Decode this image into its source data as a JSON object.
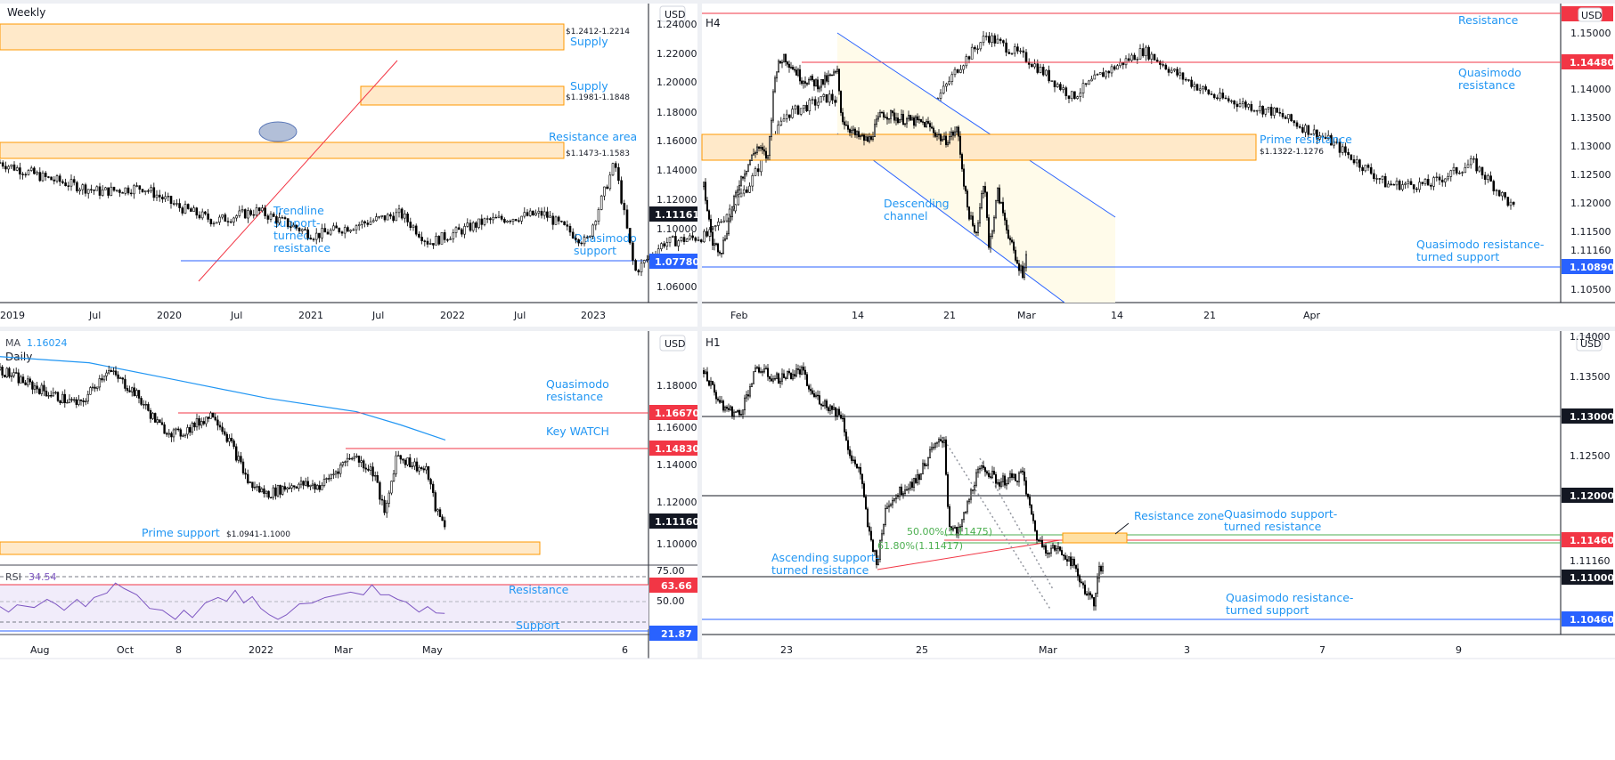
{
  "chart_data": [
    {
      "type": "candlestick",
      "title": "Weekly",
      "currency": "USD",
      "ylim": [
        1.05,
        1.245
      ],
      "y_ticks": [
        "1.24000",
        "1.22000",
        "1.20000",
        "1.18000",
        "1.16000",
        "1.14000",
        "1.12000",
        "1.10000",
        "1.06000"
      ],
      "x_ticks": [
        "2019",
        "Jul",
        "2020",
        "Jul",
        "2021",
        "Jul",
        "2022",
        "Jul",
        "2023"
      ],
      "path": [
        [
          0,
          1.145
        ],
        [
          15,
          1.135
        ],
        [
          35,
          1.125
        ],
        [
          50,
          1.128
        ],
        [
          62,
          1.115
        ],
        [
          75,
          1.105
        ],
        [
          90,
          1.112
        ],
        [
          110,
          1.095
        ],
        [
          140,
          1.11
        ],
        [
          150,
          1.09
        ],
        [
          170,
          1.105
        ],
        [
          190,
          1.11
        ],
        [
          205,
          1.09
        ],
        [
          215,
          1.145
        ],
        [
          222,
          1.07
        ],
        [
          232,
          1.09
        ],
        [
          248,
          1.095
        ],
        [
          262,
          1.13
        ],
        [
          275,
          1.178
        ],
        [
          290,
          1.19
        ],
        [
          305,
          1.175
        ],
        [
          320,
          1.165
        ],
        [
          335,
          1.21
        ],
        [
          345,
          1.232
        ],
        [
          360,
          1.215
        ],
        [
          375,
          1.19
        ],
        [
          385,
          1.205
        ],
        [
          400,
          1.222
        ],
        [
          412,
          1.205
        ],
        [
          425,
          1.19
        ],
        [
          445,
          1.18
        ],
        [
          465,
          1.16
        ],
        [
          485,
          1.13
        ],
        [
          500,
          1.13
        ],
        [
          515,
          1.145
        ],
        [
          522,
          1.13
        ],
        [
          530,
          1.112
        ]
      ],
      "last_price": "1.11161",
      "zones": [
        {
          "label": "Supply",
          "range": "$1.2412-1.2214"
        },
        {
          "label": "Supply",
          "range": "$1.1981-1.1848"
        },
        {
          "label": "Resistance area",
          "range": "$1.1473-1.1583"
        }
      ],
      "levels": [
        {
          "label": "Quasimodo support",
          "price": "1.07780",
          "color": "#2962ff"
        }
      ],
      "trendline_label": "Trendline support-turned resistance"
    },
    {
      "type": "candlestick",
      "title": "H4",
      "currency": "USD",
      "ylim": [
        1.102,
        1.153
      ],
      "y_ticks": [
        "1.15000",
        "1.14000",
        "1.13500",
        "1.13000",
        "1.12500",
        "1.12000",
        "1.11500",
        "1.10500"
      ],
      "x_ticks": [
        "Feb",
        "14",
        "21",
        "Mar",
        "14",
        "21",
        "Apr"
      ],
      "path": [
        [
          0,
          1.123
        ],
        [
          10,
          1.113
        ],
        [
          20,
          1.112
        ],
        [
          40,
          1.124
        ],
        [
          60,
          1.13
        ],
        [
          72,
          1.128
        ],
        [
          80,
          1.143
        ],
        [
          90,
          1.146
        ],
        [
          110,
          1.142
        ],
        [
          130,
          1.141
        ],
        [
          150,
          1.143
        ],
        [
          155,
          1.135
        ],
        [
          170,
          1.132
        ],
        [
          185,
          1.131
        ],
        [
          200,
          1.136
        ],
        [
          220,
          1.135
        ],
        [
          250,
          1.134
        ],
        [
          270,
          1.131
        ],
        [
          285,
          1.133
        ],
        [
          295,
          1.12
        ],
        [
          305,
          1.114
        ],
        [
          315,
          1.125
        ],
        [
          320,
          1.112
        ],
        [
          330,
          1.122
        ],
        [
          340,
          1.116
        ],
        [
          350,
          1.11
        ],
        [
          358,
          1.108
        ],
        [
          362,
          1.111
        ]
      ],
      "last_price": "1.11160",
      "levels": [
        {
          "label": "Resistance",
          "price": "1.15",
          "color": "#f23645"
        },
        {
          "label": "Quasimodo resistance",
          "price": "1.14480",
          "color": "#f23645"
        },
        {
          "label": "Quasimodo resistance-turned support",
          "price": "1.10890",
          "color": "#2962ff"
        }
      ],
      "zone": {
        "label": "Prime resistance",
        "range": "$1.1322-1.1276"
      },
      "channel_label": "Descending channel"
    },
    {
      "type": "candlestick",
      "title": "Daily",
      "currency": "USD",
      "ma": {
        "label": "MA",
        "value": "1.16024"
      },
      "y_ticks": [
        "1.18000",
        "1.16000",
        "1.14000",
        "1.12000",
        "1.10000"
      ],
      "x_ticks": [
        "Aug",
        "Oct",
        "8",
        "2022",
        "Mar",
        "May",
        "6"
      ],
      "path": [
        [
          0,
          1.188
        ],
        [
          30,
          1.181
        ],
        [
          60,
          1.175
        ],
        [
          90,
          1.17
        ],
        [
          120,
          1.188
        ],
        [
          150,
          1.177
        ],
        [
          180,
          1.159
        ],
        [
          200,
          1.155
        ],
        [
          240,
          1.166
        ],
        [
          260,
          1.15
        ],
        [
          280,
          1.13
        ],
        [
          300,
          1.125
        ],
        [
          330,
          1.13
        ],
        [
          360,
          1.129
        ],
        [
          395,
          1.145
        ],
        [
          420,
          1.136
        ],
        [
          432,
          1.114
        ],
        [
          445,
          1.145
        ],
        [
          460,
          1.141
        ],
        [
          480,
          1.136
        ],
        [
          490,
          1.116
        ],
        [
          500,
          1.109
        ]
      ],
      "ma_path": [
        [
          0,
          1.1945
        ],
        [
          100,
          1.1914
        ],
        [
          200,
          1.1825
        ],
        [
          300,
          1.1735
        ],
        [
          400,
          1.1667
        ],
        [
          450,
          1.16
        ],
        [
          500,
          1.1524
        ]
      ],
      "last_price": "1.11160",
      "levels": [
        {
          "label": "Quasimodo resistance",
          "price": "1.16670",
          "color": "#f23645"
        },
        {
          "label": "Key WATCH",
          "price": "1.14830",
          "color": "#f23645"
        }
      ],
      "zone": {
        "label": "Prime support",
        "range": "$1.0941-1.1000"
      },
      "rsi": {
        "label": "RSI",
        "value": "34.54",
        "ticks": [
          "75.00",
          "50.00"
        ],
        "resistance": {
          "label": "Resistance",
          "value": "63.66"
        },
        "support": {
          "label": "Support",
          "value": "21.87"
        },
        "values": [
          [
            0,
            42
          ],
          [
            10,
            36
          ],
          [
            20,
            44
          ],
          [
            40,
            41
          ],
          [
            55,
            50
          ],
          [
            65,
            45
          ],
          [
            75,
            38
          ],
          [
            90,
            50
          ],
          [
            100,
            42
          ],
          [
            110,
            52
          ],
          [
            125,
            57
          ],
          [
            135,
            68
          ],
          [
            145,
            62
          ],
          [
            160,
            55
          ],
          [
            175,
            40
          ],
          [
            190,
            38
          ],
          [
            205,
            28
          ],
          [
            215,
            38
          ],
          [
            225,
            30
          ],
          [
            240,
            46
          ],
          [
            255,
            52
          ],
          [
            265,
            48
          ],
          [
            275,
            60
          ],
          [
            285,
            46
          ],
          [
            295,
            53
          ],
          [
            305,
            40
          ],
          [
            315,
            33
          ],
          [
            325,
            28
          ],
          [
            335,
            33
          ],
          [
            350,
            45
          ],
          [
            365,
            46
          ],
          [
            380,
            52
          ],
          [
            395,
            55
          ],
          [
            410,
            58
          ],
          [
            425,
            55
          ],
          [
            435,
            66
          ],
          [
            445,
            55
          ],
          [
            455,
            55
          ],
          [
            465,
            50
          ],
          [
            475,
            47
          ],
          [
            490,
            36
          ],
          [
            500,
            42
          ],
          [
            510,
            35
          ],
          [
            520,
            34.5
          ]
        ]
      }
    },
    {
      "type": "candlestick",
      "title": "H1",
      "currency": "USD",
      "y_ticks": [
        "1.13500",
        "1.12500",
        "1.11160",
        "1.14000"
      ],
      "x_ticks": [
        "23",
        "25",
        "Mar",
        "3",
        "7",
        "9"
      ],
      "path": [
        [
          0,
          1.1358
        ],
        [
          10,
          1.1336
        ],
        [
          20,
          1.1313
        ],
        [
          40,
          1.1302
        ],
        [
          60,
          1.1362
        ],
        [
          80,
          1.1347
        ],
        [
          110,
          1.1358
        ],
        [
          120,
          1.133
        ],
        [
          140,
          1.1313
        ],
        [
          155,
          1.1302
        ],
        [
          165,
          1.1245
        ],
        [
          175,
          1.1234
        ],
        [
          185,
          1.1155
        ],
        [
          195,
          1.1115
        ],
        [
          205,
          1.1189
        ],
        [
          220,
          1.1205
        ],
        [
          240,
          1.1222
        ],
        [
          255,
          1.1256
        ],
        [
          270,
          1.1273
        ],
        [
          275,
          1.1166
        ],
        [
          285,
          1.115
        ],
        [
          295,
          1.1184
        ],
        [
          305,
          1.1223
        ],
        [
          315,
          1.1236
        ],
        [
          330,
          1.1217
        ],
        [
          350,
          1.1223
        ],
        [
          358,
          1.1228
        ],
        [
          365,
          1.1189
        ],
        [
          375,
          1.1144
        ],
        [
          385,
          1.1133
        ],
        [
          395,
          1.1133
        ],
        [
          410,
          1.1122
        ],
        [
          420,
          1.11
        ],
        [
          430,
          1.1077
        ],
        [
          438,
          1.1066
        ],
        [
          445,
          1.1111
        ],
        [
          448,
          1.1105
        ]
      ],
      "levels": [
        {
          "label": "",
          "price": "1.13000",
          "color": "#131722"
        },
        {
          "label": "",
          "price": "1.12000",
          "color": "#131722"
        },
        {
          "label": "Quasimodo support-turned resistance",
          "price": "1.11460",
          "color": "#f23645"
        },
        {
          "label": "",
          "price": "1.11000",
          "color": "#131722"
        },
        {
          "label": "Quasimodo resistance-turned support",
          "price": "1.10460",
          "color": "#2962ff"
        }
      ],
      "fib": [
        "50.00%(1.11475)",
        "61.80%(1.11417)"
      ],
      "zone_label": "Resistance zone",
      "trendline_label": "Ascending support-turned resistance"
    }
  ]
}
